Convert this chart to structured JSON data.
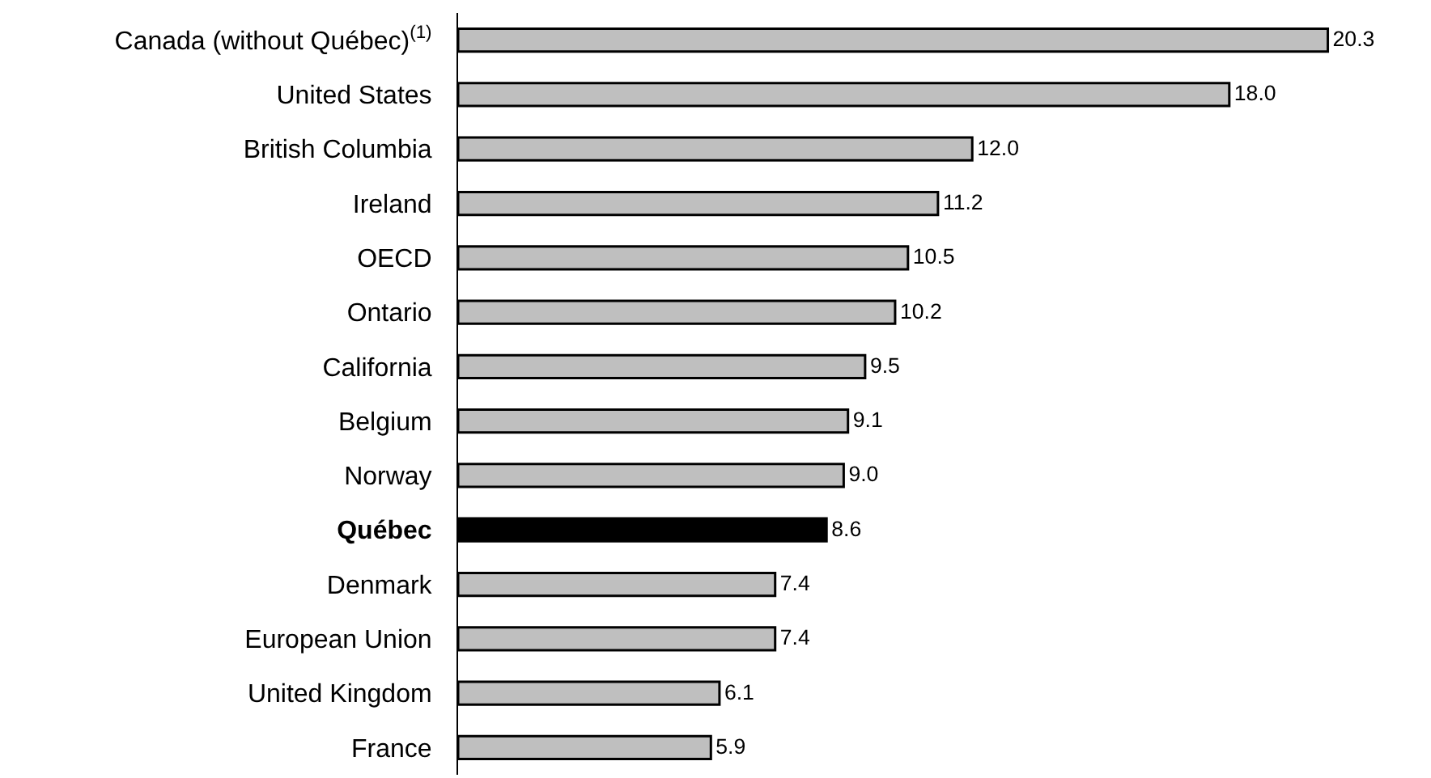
{
  "chart_data": {
    "type": "bar",
    "orientation": "horizontal",
    "legend": false,
    "categories": [
      "Canada (without Québec)$^{(1)}$",
      "United States",
      "British Columbia",
      "Ireland",
      "OECD",
      "Ontario",
      "California",
      "Belgium",
      "Norway",
      "Québec",
      "Denmark",
      "European Union",
      "United Kingdom",
      "France"
    ],
    "values": [
      20.3,
      18.0,
      12.0,
      11.2,
      10.5,
      10.2,
      9.5,
      9.1,
      9.0,
      8.6,
      7.4,
      7.4,
      6.1,
      5.9
    ],
    "value_labels": [
      "20.3",
      "18.0",
      "12.0",
      "11.2",
      "10.5",
      "10.2",
      "9.5",
      "9.1",
      "9.0",
      "8.6",
      "7.4",
      "7.4",
      "6.1",
      "5.9"
    ],
    "colors": [
      "#bfbfbf",
      "#bfbfbf",
      "#bfbfbf",
      "#bfbfbf",
      "#bfbfbf",
      "#bfbfbf",
      "#bfbfbf",
      "#bfbfbf",
      "#bfbfbf",
      "#000000",
      "#bfbfbf",
      "#bfbfbf",
      "#bfbfbf",
      "#bfbfbf"
    ]
  }
}
